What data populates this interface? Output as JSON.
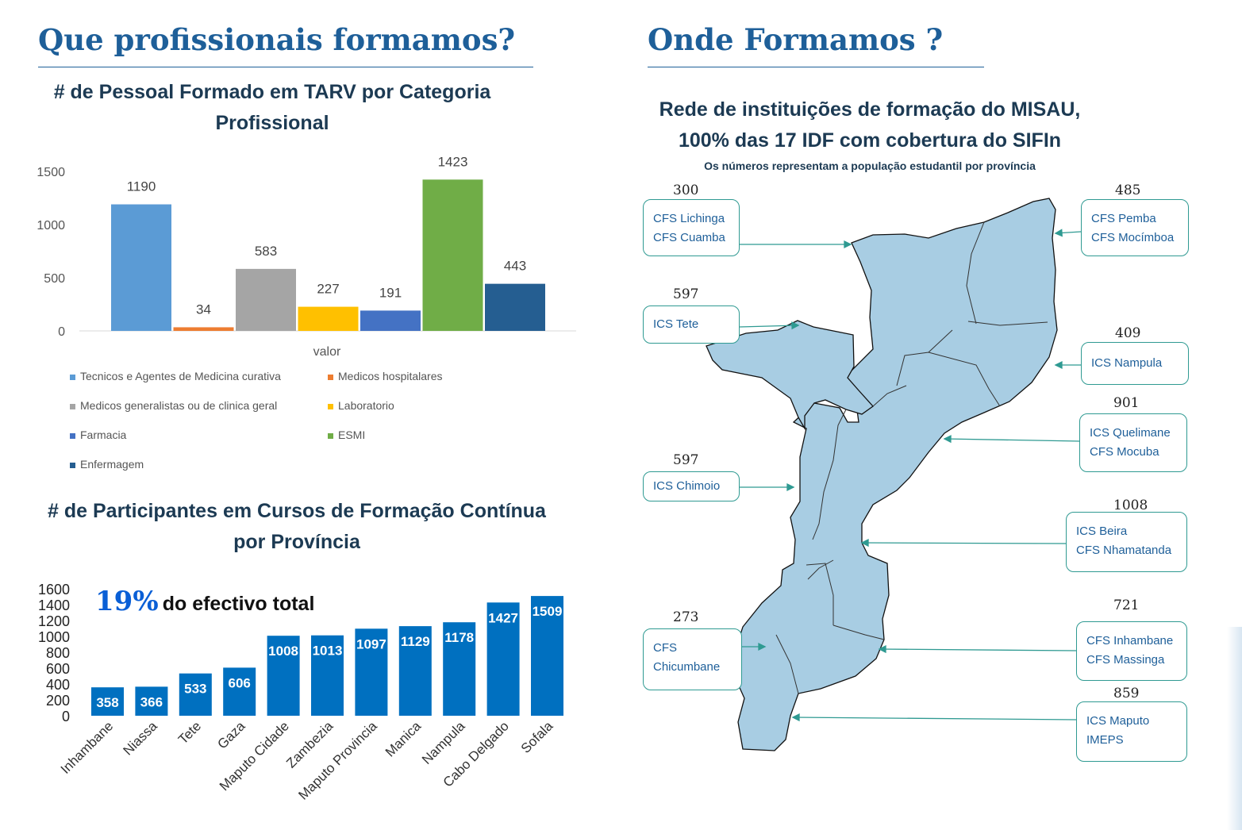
{
  "left": {
    "title": "Que profissionais formamos?",
    "chart1_title_line1": "# de Pessoal Formado em TARV por Categoria",
    "chart1_title_line2": "Profissional",
    "chart2_title_line1": "# de Participantes em Cursos de Formação Contínua",
    "chart2_title_line2": "por Província",
    "highlight_pct": "19%",
    "highlight_text": "do efectivo total"
  },
  "right": {
    "title": "Onde Formamos ?",
    "subtitle_line1": "Rede de instituições de formação do MISAU,",
    "subtitle_line2": "100%  das 17 IDF com cobertura do SIFIn",
    "note": "Os números representam a população estudantil por província",
    "map_color": "#a8cde3",
    "callouts": [
      {
        "number": "300",
        "lines": [
          "CFS Lichinga",
          "CFS Cuamba"
        ]
      },
      {
        "number": "597",
        "lines": [
          "ICS Tete"
        ]
      },
      {
        "number": "597",
        "lines": [
          "ICS Chimoio"
        ]
      },
      {
        "number": "273",
        "lines": [
          "CFS",
          "Chicumbane"
        ]
      },
      {
        "number": "485",
        "lines": [
          "CFS Pemba",
          "CFS Mocímboa"
        ]
      },
      {
        "number": "409",
        "lines": [
          "ICS Nampula"
        ]
      },
      {
        "number": "901",
        "lines": [
          "ICS Quelimane",
          "CFS Mocuba"
        ]
      },
      {
        "number": "1008",
        "lines": [
          "ICS Beira",
          "CFS Nhamatanda"
        ]
      },
      {
        "number": "721",
        "lines": [
          "CFS Inhambane",
          "CFS Massinga"
        ]
      },
      {
        "number": "859",
        "lines": [
          "ICS Maputo",
          "IMEPS"
        ]
      }
    ]
  },
  "chart_data": [
    {
      "type": "bar",
      "title": "# de Pessoal Formado em TARV por Categoria Profissional",
      "xlabel": "valor",
      "categories": [
        "valor"
      ],
      "ylim": [
        0,
        1500
      ],
      "yticks": [
        "0",
        "500",
        "1000",
        "1500"
      ],
      "legend_position": "bottom",
      "series": [
        {
          "name": "Tecnicos e Agentes de Medicina curativa",
          "value": 1190,
          "color": "#5b9bd5"
        },
        {
          "name": "Medicos hospitalares",
          "value": 34,
          "color": "#ed7d31"
        },
        {
          "name": "Medicos generalistas ou de clinica geral",
          "value": 583,
          "color": "#a5a5a5"
        },
        {
          "name": "Laboratorio",
          "value": 227,
          "color": "#ffc000"
        },
        {
          "name": "Farmacia",
          "value": 191,
          "color": "#4472c4"
        },
        {
          "name": "ESMI",
          "value": 1423,
          "color": "#70ad47"
        },
        {
          "name": "Enfermagem",
          "value": 443,
          "color": "#255e91"
        }
      ]
    },
    {
      "type": "bar",
      "title": "# de Participantes em Cursos de Formação Contínua por Província",
      "categories": [
        "Inhambane",
        "Niassa",
        "Tete",
        "Gaza",
        "Maputo Cidade",
        "Zambezia",
        "Maputo Provincia",
        "Manica",
        "Nampula",
        "Cabo Delgado",
        "Sofala"
      ],
      "values": [
        358,
        366,
        533,
        606,
        1008,
        1013,
        1097,
        1129,
        1178,
        1427,
        1509
      ],
      "ylim": [
        0,
        1600
      ],
      "yticks": [
        "0",
        "200",
        "400",
        "600",
        "800",
        "1000",
        "1200",
        "1400",
        "1600"
      ],
      "color": "#0070c0",
      "grid": false
    }
  ]
}
